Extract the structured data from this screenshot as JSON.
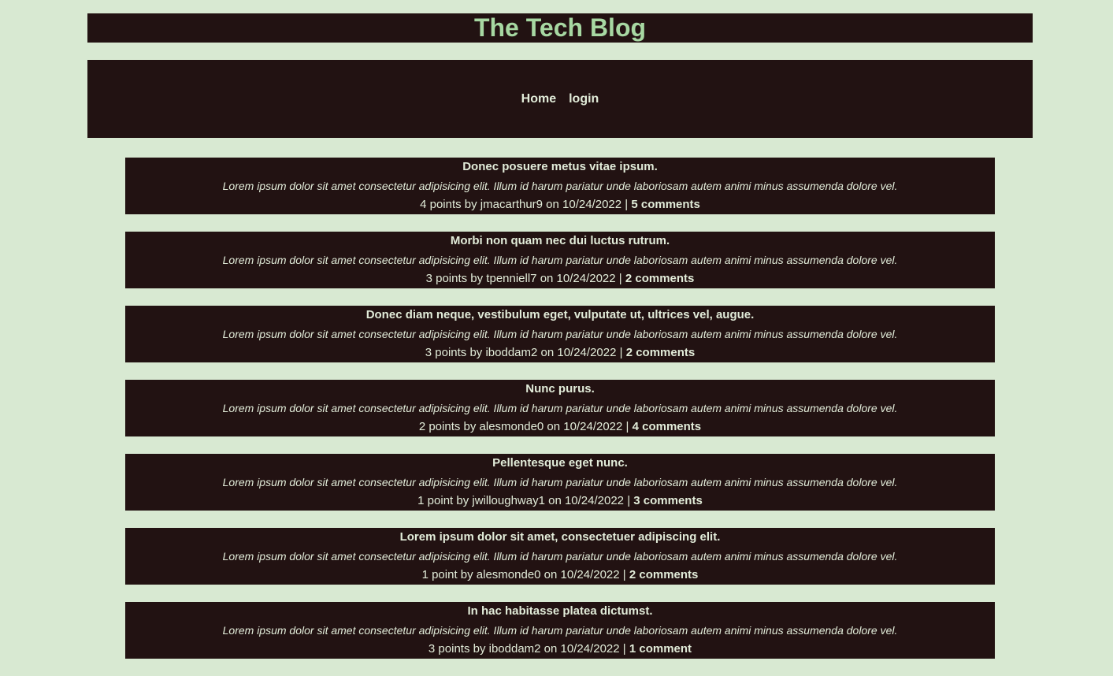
{
  "header": {
    "title": "The Tech Blog"
  },
  "nav": {
    "home": "Home",
    "login": "login"
  },
  "posts": [
    {
      "title": "Donec posuere metus vitae ipsum.",
      "body": "Lorem ipsum dolor sit amet consectetur adipisicing elit. Illum id harum pariatur unde laboriosam autem animi minus assumenda dolore vel.",
      "meta": "4 points by jmacarthur9 on 10/24/2022 |",
      "comments": "5 comments"
    },
    {
      "title": "Morbi non quam nec dui luctus rutrum.",
      "body": "Lorem ipsum dolor sit amet consectetur adipisicing elit. Illum id harum pariatur unde laboriosam autem animi minus assumenda dolore vel.",
      "meta": "3 points by tpenniell7 on 10/24/2022 |",
      "comments": "2 comments"
    },
    {
      "title": "Donec diam neque, vestibulum eget, vulputate ut, ultrices vel, augue.",
      "body": "Lorem ipsum dolor sit amet consectetur adipisicing elit. Illum id harum pariatur unde laboriosam autem animi minus assumenda dolore vel.",
      "meta": "3 points by iboddam2 on 10/24/2022 |",
      "comments": "2 comments"
    },
    {
      "title": "Nunc purus.",
      "body": "Lorem ipsum dolor sit amet consectetur adipisicing elit. Illum id harum pariatur unde laboriosam autem animi minus assumenda dolore vel.",
      "meta": "2 points by alesmonde0 on 10/24/2022 |",
      "comments": "4 comments"
    },
    {
      "title": "Pellentesque eget nunc.",
      "body": "Lorem ipsum dolor sit amet consectetur adipisicing elit. Illum id harum pariatur unde laboriosam autem animi minus assumenda dolore vel.",
      "meta": "1 point by jwilloughway1 on 10/24/2022 |",
      "comments": "3 comments"
    },
    {
      "title": "Lorem ipsum dolor sit amet, consectetuer adipiscing elit.",
      "body": "Lorem ipsum dolor sit amet consectetur adipisicing elit. Illum id harum pariatur unde laboriosam autem animi minus assumenda dolore vel.",
      "meta": "1 point by alesmonde0 on 10/24/2022 |",
      "comments": "2 comments"
    },
    {
      "title": "In hac habitasse platea dictumst.",
      "body": "Lorem ipsum dolor sit amet consectetur adipisicing elit. Illum id harum pariatur unde laboriosam autem animi minus assumenda dolore vel.",
      "meta": "3 points by iboddam2 on 10/24/2022 |",
      "comments": "1 comment"
    }
  ]
}
